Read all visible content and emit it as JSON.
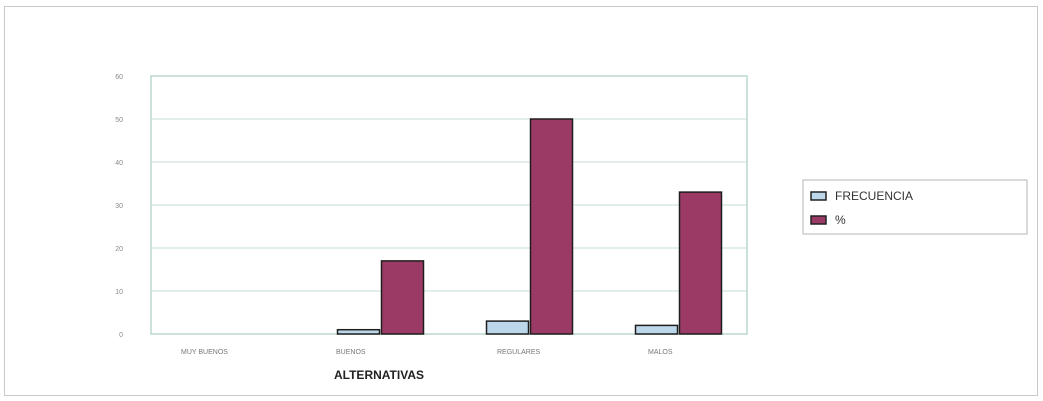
{
  "chart_data": {
    "type": "bar",
    "title": "",
    "xlabel": "ALTERNATIVAS",
    "ylabel": "",
    "categories": [
      "MUY BUENOS",
      "BUENOS",
      "REGULARES",
      "MALOS"
    ],
    "series": [
      {
        "name": "FRECUENCIA",
        "values": [
          0,
          1,
          3,
          2
        ],
        "color": "#bcd6ea"
      },
      {
        "name": "%",
        "values": [
          0,
          17,
          50,
          33
        ],
        "color": "#9c3a66"
      }
    ],
    "yticks": [
      0,
      10,
      20,
      30,
      40,
      50,
      60
    ],
    "ylim": [
      0,
      60
    ],
    "grid": true,
    "plot_background": "#ffffff",
    "plot_border_color": "#b8d8cc",
    "legend_position": "right"
  }
}
